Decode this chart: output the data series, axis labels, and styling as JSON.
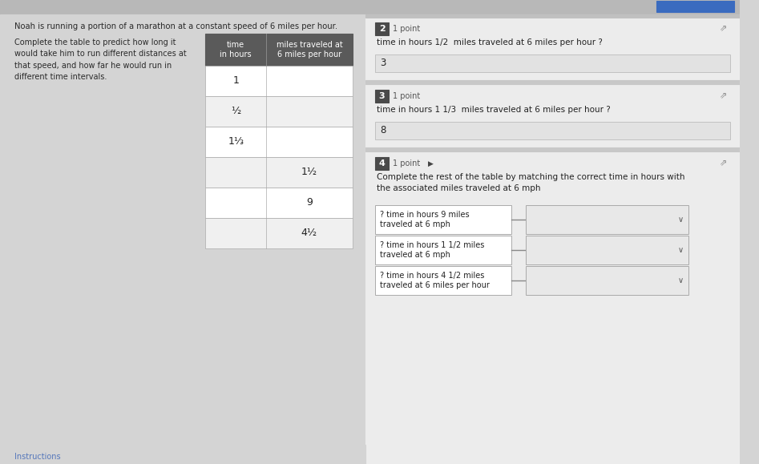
{
  "bg_color": "#d4d4d4",
  "white": "#ffffff",
  "light_gray_row": "#f0f0f0",
  "header_bg": "#5a5a5a",
  "header_text": "#ffffff",
  "badge_bg": "#4a4a4a",
  "badge_text": "#ffffff",
  "answer_bg": "#e2e2e2",
  "dropdown_bg": "#e8e8e8",
  "label_box_bg": "#f0f0f0",
  "top_bar_color": "#b0b0b0",
  "separator_color": "#c8c8c8",
  "right_panel_bg": "#ececec",
  "title_text": "Noah is running a portion of a marathon at a constant speed of 6 miles per hour.",
  "left_desc": "Complete the table to predict how long it\nwould take him to run different distances at\nthat speed, and how far he would run in\ndifferent time intervals.",
  "col1_header": "time\nin hours",
  "col2_header": "miles traveled at\n6 miles per hour",
  "table_rows": [
    {
      "col1": "1",
      "col2": ""
    },
    {
      "col1": "½",
      "col2": ""
    },
    {
      "col1": "1⅓",
      "col2": ""
    },
    {
      "col1": "",
      "col2": "1½"
    },
    {
      "col1": "",
      "col2": "9"
    },
    {
      "col1": "",
      "col2": "4½"
    }
  ],
  "q2_num": "2",
  "q2_points": "1 point",
  "q2_question": "time in hours 1/2  miles traveled at 6 miles per hour ?",
  "q2_answer": "3",
  "q3_num": "3",
  "q3_points": "1 point",
  "q3_question": "time in hours 1 1/3  miles traveled at 6 miles per hour ?",
  "q3_answer": "8",
  "q4_num": "4",
  "q4_points": "1 point",
  "q4_intro": "Complete the rest of the table by matching the correct time in hours with\nthe associated miles traveled at 6 mph",
  "q4_rows": [
    "? time in hours 9 miles\ntraveled at 6 mph",
    "? time in hours 1 1/2 miles\ntraveled at 6 mph",
    "? time in hours 4 1/2 miles\ntraveled at 6 miles per hour"
  ]
}
